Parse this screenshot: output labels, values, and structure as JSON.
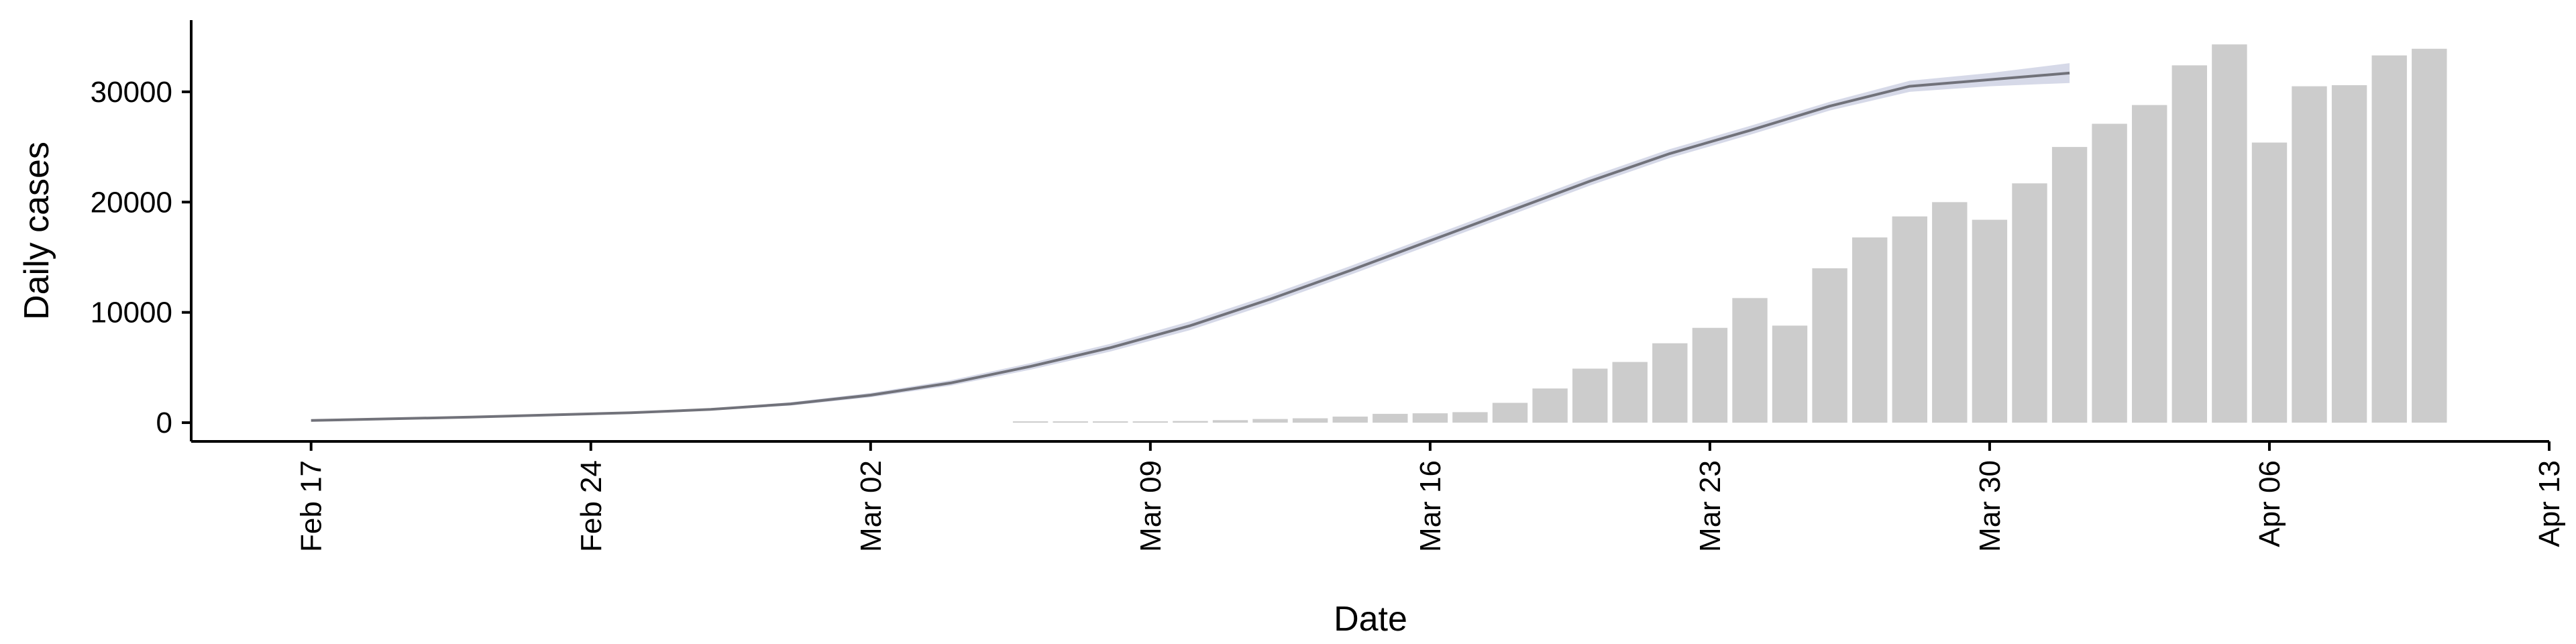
{
  "chart_data": {
    "type": "bar",
    "title": "",
    "xlabel": "Date",
    "ylabel": "Daily cases",
    "grid": false,
    "legend": "none",
    "xlim": [
      "2020-02-14",
      "2020-04-13"
    ],
    "ylim": [
      -1700,
      36500
    ],
    "x_ticks": [
      "2020-02-17",
      "2020-02-24",
      "2020-03-02",
      "2020-03-09",
      "2020-03-16",
      "2020-03-23",
      "2020-03-30",
      "2020-04-06",
      "2020-04-13"
    ],
    "x_tick_labels": [
      "Feb 17",
      "Feb 24",
      "Mar 02",
      "Mar 09",
      "Mar 16",
      "Mar 23",
      "Mar 30",
      "Apr 06",
      "Apr 13"
    ],
    "y_ticks": [
      0,
      10000,
      20000,
      30000
    ],
    "y_tick_labels": [
      "0",
      "10000",
      "20000",
      "30000"
    ],
    "colors": {
      "bars": "#cccccc",
      "line": "#5f5f66",
      "band": "#c8cce0",
      "axis": "#000000"
    },
    "bars": {
      "x": [
        "2020-03-06",
        "2020-03-07",
        "2020-03-08",
        "2020-03-09",
        "2020-03-10",
        "2020-03-11",
        "2020-03-12",
        "2020-03-13",
        "2020-03-14",
        "2020-03-15",
        "2020-03-16",
        "2020-03-17",
        "2020-03-18",
        "2020-03-19",
        "2020-03-20",
        "2020-03-21",
        "2020-03-22",
        "2020-03-23",
        "2020-03-24",
        "2020-03-25",
        "2020-03-26",
        "2020-03-27",
        "2020-03-28",
        "2020-03-29",
        "2020-03-30",
        "2020-03-31",
        "2020-04-01",
        "2020-04-02",
        "2020-04-03",
        "2020-04-04",
        "2020-04-05",
        "2020-04-06",
        "2020-04-07",
        "2020-04-08",
        "2020-04-09",
        "2020-04-10"
      ],
      "values": [
        25,
        50,
        70,
        90,
        150,
        230,
        330,
        400,
        550,
        800,
        850,
        950,
        1800,
        3100,
        4900,
        5500,
        7200,
        8600,
        11300,
        8800,
        14000,
        16800,
        18700,
        20000,
        18400,
        21700,
        25000,
        27100,
        28800,
        32400,
        34300,
        25400,
        30500,
        30600,
        33300,
        33900
      ]
    },
    "series": [
      {
        "x": [
          "2020-02-17",
          "2020-02-19",
          "2020-02-21",
          "2020-02-23",
          "2020-02-25",
          "2020-02-27",
          "2020-02-29",
          "2020-03-02",
          "2020-03-04",
          "2020-03-06",
          "2020-03-08",
          "2020-03-10",
          "2020-03-12",
          "2020-03-14",
          "2020-03-16",
          "2020-03-18",
          "2020-03-20",
          "2020-03-22",
          "2020-03-24",
          "2020-03-26",
          "2020-03-28",
          "2020-03-30",
          "2020-04-01"
        ],
        "values": [
          200,
          350,
          500,
          700,
          900,
          1200,
          1700,
          2500,
          3600,
          5100,
          6800,
          8800,
          11200,
          13800,
          16500,
          19200,
          21900,
          24400,
          26500,
          28700,
          30500,
          31100,
          31700
        ],
        "band": [
          [
            100,
            300
          ],
          [
            250,
            450
          ],
          [
            400,
            600
          ],
          [
            600,
            800
          ],
          [
            800,
            1000
          ],
          [
            1100,
            1300
          ],
          [
            1550,
            1850
          ],
          [
            2300,
            2700
          ],
          [
            3350,
            3850
          ],
          [
            4800,
            5400
          ],
          [
            6450,
            7150
          ],
          [
            8400,
            9200
          ],
          [
            10800,
            11600
          ],
          [
            13400,
            14200
          ],
          [
            16100,
            16900
          ],
          [
            18800,
            19600
          ],
          [
            21500,
            22300
          ],
          [
            24000,
            24800
          ],
          [
            26100,
            26900
          ],
          [
            28300,
            29100
          ],
          [
            30000,
            31000
          ],
          [
            30500,
            31700
          ],
          [
            30800,
            32600
          ]
        ]
      }
    ]
  }
}
